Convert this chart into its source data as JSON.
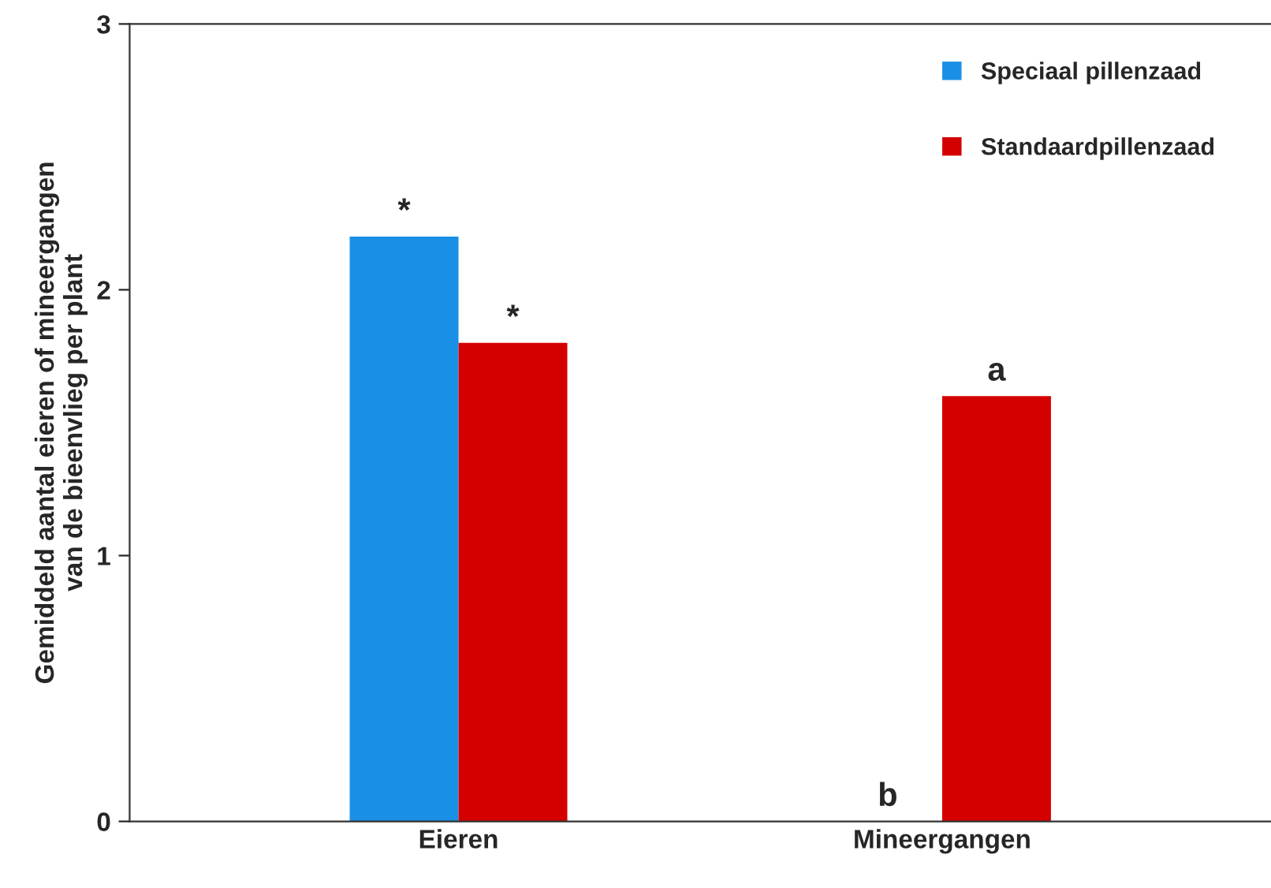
{
  "chart_data": {
    "type": "bar",
    "ylabel": "Gemiddeld aantal eieren of mineergangen\nvan de bieenvlieg per plant",
    "categories": [
      "Eieren",
      "Mineergangen"
    ],
    "series": [
      {
        "name": "Speciaal pillenzaad",
        "color": "#1a8fe6",
        "values": [
          2.2,
          null
        ],
        "value_labels": [
          "*",
          null
        ]
      },
      {
        "name": "Standaardpillenzaad",
        "color": "#d40000",
        "values": [
          1.8,
          1.6
        ],
        "value_labels": [
          "*",
          "a"
        ]
      }
    ],
    "ylim": [
      0,
      3
    ],
    "yticks": [
      0,
      1,
      2,
      3
    ],
    "annotations": [
      {
        "text": "b",
        "x": "Mineergangen",
        "y": 0
      }
    ],
    "grid": false,
    "legend": "top right"
  }
}
